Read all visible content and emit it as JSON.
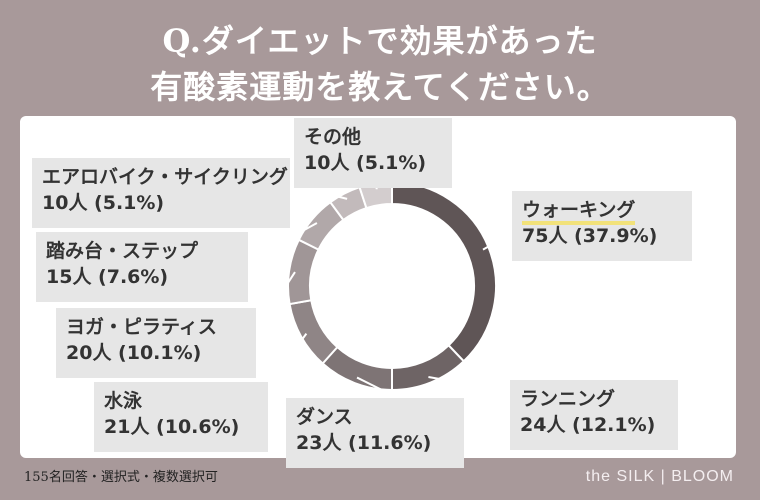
{
  "title": {
    "line1": "Q.ダイエットで効果があった",
    "line2": "有酸素運動を教えてください。"
  },
  "footer": {
    "note": "155名回答・選択式・複数選択可",
    "brand": "the SILK | BLOOM"
  },
  "chart_data": {
    "type": "pie",
    "subtype": "donut",
    "title": "ダイエットで効果があった有酸素運動",
    "slices": [
      {
        "label": "ウォーキング",
        "count": 75,
        "percent": 37.9,
        "value_text": "75人 (37.9%)",
        "color": "#5f5556"
      },
      {
        "label": "ランニング",
        "count": 24,
        "percent": 12.1,
        "value_text": "24人 (12.1%)",
        "color": "#6e6465"
      },
      {
        "label": "ダンス",
        "count": 23,
        "percent": 11.6,
        "value_text": "23人 (11.6%)",
        "color": "#7e7475"
      },
      {
        "label": "水泳",
        "count": 21,
        "percent": 10.6,
        "value_text": "21人 (10.6%)",
        "color": "#8f8586"
      },
      {
        "label": "ヨガ・ピラティス",
        "count": 20,
        "percent": 10.1,
        "value_text": "20人 (10.1%)",
        "color": "#a09697"
      },
      {
        "label": "踏み台・ステップ",
        "count": 15,
        "percent": 7.6,
        "value_text": "15人 (7.6%)",
        "color": "#b1a8a9"
      },
      {
        "label": "エアロバイク・サイクリング",
        "count": 10,
        "percent": 5.1,
        "value_text": "10人 (5.1%)",
        "color": "#c2babb"
      },
      {
        "label": "その他",
        "count": 10,
        "percent": 5.1,
        "value_text": "10人 (5.1%)",
        "color": "#d3cdce"
      }
    ],
    "highlight_color": "#f2e27a"
  }
}
